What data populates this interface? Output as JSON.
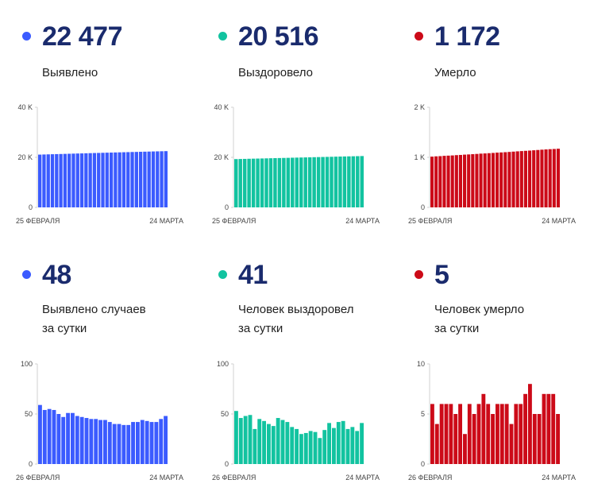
{
  "panels": [
    {
      "number": "22 477",
      "label_lines": [
        "Выявлено"
      ],
      "color": "#3b5bff",
      "y_ticks": [
        "40 K",
        "20 K",
        "0"
      ],
      "x_start": "25 ФЕВРАЛЯ",
      "x_end": "24 МАРТА"
    },
    {
      "number": "20 516",
      "label_lines": [
        "Выздоровело"
      ],
      "color": "#12c3a0",
      "y_ticks": [
        "40 K",
        "20 K",
        "0"
      ],
      "x_start": "25 ФЕВРАЛЯ",
      "x_end": "24 МАРТА"
    },
    {
      "number": "1 172",
      "label_lines": [
        "Умерло"
      ],
      "color": "#cc0a18",
      "y_ticks": [
        "2 K",
        "1 K",
        "0"
      ],
      "x_start": "25 ФЕВРАЛЯ",
      "x_end": "24 МАРТА"
    },
    {
      "number": "48",
      "label_lines": [
        "Выявлено случаев",
        "за сутки"
      ],
      "color": "#3b5bff",
      "y_ticks": [
        "100",
        "50",
        "0"
      ],
      "x_start": "26 ФЕВРАЛЯ",
      "x_end": "24 МАРТА"
    },
    {
      "number": "41",
      "label_lines": [
        "Человек выздоровел",
        "за сутки"
      ],
      "color": "#12c3a0",
      "y_ticks": [
        "100",
        "50",
        "0"
      ],
      "x_start": "26 ФЕВРАЛЯ",
      "x_end": "24 МАРТА"
    },
    {
      "number": "5",
      "label_lines": [
        "Человек умерло",
        "за сутки"
      ],
      "color": "#cc0a18",
      "y_ticks": [
        "10",
        "5",
        "0"
      ],
      "x_start": "26 ФЕВРАЛЯ",
      "x_end": "24 МАРТА"
    }
  ],
  "chart_data": [
    {
      "type": "bar",
      "ylim": [
        0,
        40000
      ],
      "x_range": [
        "25 ФЕВРАЛЯ",
        "24 МАРТА"
      ],
      "values": [
        21090,
        21140,
        21190,
        21240,
        21290,
        21330,
        21380,
        21430,
        21480,
        21530,
        21570,
        21620,
        21670,
        21720,
        21760,
        21810,
        21860,
        21900,
        21950,
        21990,
        22040,
        22080,
        22130,
        22170,
        22220,
        22260,
        22300,
        22350,
        22390,
        22430,
        22477
      ]
    },
    {
      "type": "bar",
      "ylim": [
        0,
        40000
      ],
      "x_range": [
        "25 ФЕВРАЛЯ",
        "24 МАРТА"
      ],
      "values": [
        19300,
        19340,
        19380,
        19430,
        19470,
        19510,
        19550,
        19590,
        19640,
        19680,
        19720,
        19760,
        19800,
        19850,
        19890,
        19930,
        19970,
        20010,
        20060,
        20100,
        20140,
        20180,
        20220,
        20270,
        20310,
        20350,
        20390,
        20430,
        20470,
        20516
      ]
    },
    {
      "type": "bar",
      "ylim": [
        0,
        2000
      ],
      "x_range": [
        "25 ФЕВРАЛЯ",
        "24 МАРТА"
      ],
      "values": [
        1014,
        1020,
        1024,
        1030,
        1034,
        1038,
        1044,
        1048,
        1054,
        1058,
        1063,
        1068,
        1074,
        1078,
        1083,
        1088,
        1094,
        1098,
        1103,
        1108,
        1114,
        1120,
        1125,
        1130,
        1135,
        1141,
        1147,
        1153,
        1158,
        1163,
        1167,
        1172
      ]
    },
    {
      "type": "bar",
      "ylim": [
        0,
        100
      ],
      "x_range": [
        "26 ФЕВРАЛЯ",
        "24 МАРТА"
      ],
      "values": [
        59,
        54,
        55,
        54,
        50,
        47,
        51,
        51,
        48,
        47,
        46,
        45,
        45,
        44,
        44,
        42,
        40,
        40,
        39,
        39,
        42,
        42,
        44,
        43,
        42,
        42,
        45,
        48
      ]
    },
    {
      "type": "bar",
      "ylim": [
        0,
        100
      ],
      "x_range": [
        "26 ФЕВРАЛЯ",
        "24 МАРТА"
      ],
      "values": [
        53,
        46,
        48,
        49,
        35,
        45,
        43,
        40,
        38,
        46,
        44,
        42,
        37,
        35,
        30,
        31,
        33,
        32,
        26,
        34,
        41,
        36,
        42,
        43,
        35,
        37,
        33,
        41
      ]
    },
    {
      "type": "bar",
      "ylim": [
        0,
        10
      ],
      "x_range": [
        "26 ФЕВРАЛЯ",
        "24 МАРТА"
      ],
      "values": [
        6,
        4,
        6,
        6,
        6,
        5,
        6,
        3,
        6,
        5,
        6,
        7,
        6,
        5,
        6,
        6,
        6,
        4,
        6,
        6,
        7,
        8,
        5,
        5,
        7,
        7,
        7,
        5
      ]
    }
  ]
}
